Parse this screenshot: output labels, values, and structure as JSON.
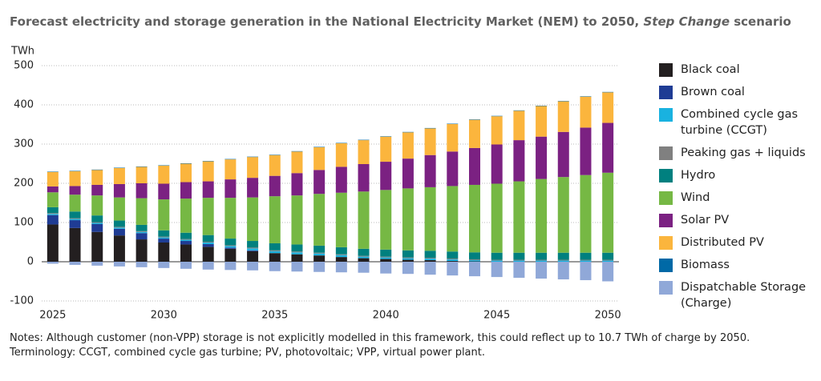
{
  "chart_data": {
    "type": "stacked_bar",
    "title": [
      "Forecast electricity and storage generation in the National Electricity Market (NEM) to 2050, ",
      "Step Change",
      " scenario"
    ],
    "y_label": "TWh",
    "categories": [
      "2025",
      null,
      null,
      null,
      null,
      "2030",
      null,
      null,
      null,
      null,
      "2035",
      null,
      null,
      null,
      null,
      "2040",
      null,
      null,
      null,
      null,
      "2045",
      null,
      null,
      null,
      null,
      "2050"
    ],
    "ylim": [
      -100,
      500
    ],
    "yticks": [
      -100,
      0,
      100,
      200,
      300,
      400,
      500
    ],
    "grid": true,
    "series": [
      {
        "name": "Black coal",
        "color": "#231f20",
        "values": [
          95,
          86,
          76,
          67,
          57,
          49,
          44,
          38,
          33,
          27,
          22,
          19,
          16,
          12,
          9,
          7,
          5,
          4,
          2,
          1,
          0,
          0,
          0,
          0,
          0,
          0
        ]
      },
      {
        "name": "Brown coal",
        "color": "#1f3c94",
        "values": [
          24,
          20,
          20,
          17,
          16,
          10,
          9,
          7,
          3,
          2,
          0,
          0,
          0,
          0,
          0,
          0,
          0,
          0,
          0,
          0,
          0,
          0,
          0,
          0,
          0,
          0
        ]
      },
      {
        "name": "Combined cycle gas turbine (CCGT)",
        "color": "#19b2e0",
        "values": [
          3,
          3,
          3,
          3,
          3,
          3,
          3,
          4,
          4,
          5,
          5,
          5,
          5,
          5,
          4,
          4,
          4,
          4,
          4,
          3,
          3,
          3,
          3,
          3,
          3,
          3
        ]
      },
      {
        "name": "Peaking gas + liquids",
        "color": "#808080",
        "values": [
          2,
          2,
          2,
          2,
          2,
          2,
          2,
          2,
          2,
          2,
          2,
          2,
          2,
          2,
          2,
          2,
          2,
          2,
          2,
          2,
          2,
          2,
          2,
          2,
          2,
          2
        ]
      },
      {
        "name": "Hydro",
        "color": "#00807f",
        "values": [
          15,
          17,
          17,
          16,
          16,
          16,
          16,
          17,
          17,
          17,
          18,
          18,
          18,
          18,
          18,
          18,
          18,
          18,
          18,
          18,
          18,
          18,
          18,
          18,
          18,
          18
        ]
      },
      {
        "name": "Wind",
        "color": "#76b844",
        "values": [
          38,
          43,
          51,
          59,
          68,
          79,
          87,
          95,
          104,
          111,
          120,
          125,
          132,
          139,
          146,
          152,
          158,
          162,
          167,
          172,
          176,
          182,
          188,
          193,
          198,
          204
        ]
      },
      {
        "name": "Solar PV",
        "color": "#7b2182",
        "values": [
          15,
          22,
          27,
          34,
          38,
          40,
          42,
          42,
          47,
          50,
          52,
          57,
          61,
          66,
          70,
          72,
          76,
          82,
          88,
          94,
          100,
          105,
          108,
          115,
          121,
          127
        ]
      },
      {
        "name": "Distributed PV",
        "color": "#fbb53d",
        "values": [
          37,
          38,
          38,
          41,
          42,
          46,
          47,
          51,
          51,
          53,
          53,
          55,
          58,
          60,
          61,
          64,
          67,
          68,
          70,
          72,
          72,
          75,
          78,
          78,
          79,
          78
        ]
      },
      {
        "name": "Biomass",
        "color": "#0069a6",
        "values": [
          1,
          1,
          1,
          1,
          1,
          1,
          1,
          1,
          1,
          1,
          1,
          1,
          1,
          1,
          1,
          1,
          1,
          1,
          1,
          1,
          1,
          1,
          1,
          1,
          1,
          1
        ]
      },
      {
        "name": "Dispatchable Storage (Charge)",
        "color": "#90a8d8",
        "values": [
          -5,
          -8,
          -10,
          -12,
          -14,
          -16,
          -18,
          -20,
          -21,
          -22,
          -24,
          -25,
          -26,
          -27,
          -28,
          -30,
          -31,
          -33,
          -35,
          -37,
          -39,
          -41,
          -43,
          -45,
          -47,
          -50
        ]
      }
    ],
    "notes": [
      "Notes: Although customer (non-VPP) storage is not explicitly modelled in this framework, this could reflect up to 10.7 TWh of charge by 2050.",
      "Terminology: CCGT, combined cycle gas turbine; PV, photovoltaic; VPP, virtual power plant."
    ]
  }
}
